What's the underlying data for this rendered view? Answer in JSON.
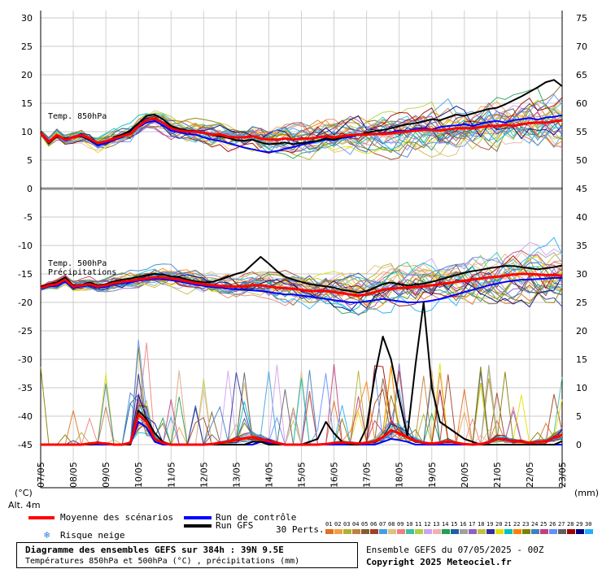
{
  "chart_data": {
    "type": "line",
    "title": "Diagramme des ensembles GEFS sur 384h : 39N 9.5E",
    "subtitle": "Températures 850hPa et 500hPa (°C) , précipitations (mm)",
    "x_tick_labels": [
      "07/05",
      "08/05",
      "09/05",
      "10/05",
      "11/05",
      "12/05",
      "13/05",
      "14/05",
      "15/05",
      "16/05",
      "17/05",
      "18/05",
      "19/05",
      "20/05",
      "21/05",
      "22/05",
      "23/05"
    ],
    "x_unit_label": "(°C)",
    "altitude_label": "Alt. 4m",
    "y_left": {
      "range": [
        -45,
        30
      ],
      "ticks": [
        30,
        25,
        20,
        15,
        10,
        5,
        0,
        -5,
        -10,
        -15,
        -20,
        -25,
        -30,
        -35,
        -40,
        -45
      ]
    },
    "y_right": {
      "label": "(mm)",
      "range": [
        0,
        75
      ],
      "ticks": [
        75,
        70,
        65,
        60,
        55,
        50,
        45,
        40,
        35,
        30,
        25,
        20,
        15,
        10,
        5,
        0
      ]
    },
    "panel_labels": {
      "t850": "Temp. 850hPa",
      "t500": "Temp. 500hPa",
      "precip": "Précipitations"
    },
    "series": [
      {
        "name": "Moyenne des scénarios",
        "group": "t850",
        "color": "#ff0000",
        "values": [
          9.8,
          8.2,
          9.4,
          8.6,
          9.0,
          9.4,
          8.8,
          8.0,
          8.3,
          8.8,
          9.2,
          9.6,
          11.0,
          12.0,
          12.3,
          11.6,
          10.6,
          10.2,
          10.0,
          10.0,
          9.8,
          9.5,
          9.5,
          9.1,
          9.0,
          9.0,
          9.2,
          8.8,
          8.6,
          8.6,
          8.8,
          8.6,
          8.8,
          8.8,
          9.0,
          9.2,
          9.0,
          9.2,
          9.4,
          9.5,
          9.5,
          9.6,
          9.6,
          9.7,
          9.9,
          10.0,
          10.2,
          10.3,
          10.3,
          10.2,
          10.4,
          10.6,
          10.6,
          10.6,
          10.8,
          11.0,
          11.0,
          11.2,
          11.0,
          11.3,
          11.5,
          11.6,
          11.6,
          11.8,
          12.0
        ]
      },
      {
        "name": "Run GFS",
        "group": "t850",
        "color": "#000000",
        "values": [
          10.0,
          8.0,
          9.2,
          8.8,
          9.0,
          9.2,
          8.6,
          7.9,
          8.2,
          9.0,
          9.5,
          10.2,
          11.5,
          12.8,
          13.0,
          12.2,
          11.0,
          10.5,
          10.2,
          10.1,
          9.7,
          9.4,
          9.2,
          8.9,
          8.5,
          8.4,
          8.6,
          8.1,
          7.8,
          7.9,
          8.1,
          7.8,
          8.0,
          8.2,
          8.4,
          8.8,
          8.6,
          9.0,
          9.3,
          9.5,
          9.8,
          10.1,
          10.3,
          10.6,
          11.0,
          11.3,
          11.5,
          11.8,
          12.2,
          12.0,
          12.5,
          13.0,
          12.8,
          13.2,
          13.6,
          14.0,
          14.2,
          14.8,
          15.5,
          16.2,
          17.0,
          17.8,
          18.7,
          19.1,
          18.0
        ]
      },
      {
        "name": "Run de contrôle",
        "group": "t850",
        "color": "#0000ff",
        "values": [
          9.9,
          8.4,
          9.3,
          8.7,
          9.1,
          9.2,
          8.5,
          7.6,
          8.0,
          8.6,
          9.0,
          9.8,
          10.8,
          11.6,
          11.9,
          11.1,
          10.2,
          9.9,
          9.6,
          9.5,
          9.0,
          8.6,
          8.4,
          8.0,
          7.6,
          7.2,
          6.9,
          6.6,
          6.4,
          6.6,
          7.0,
          7.3,
          7.7,
          8.0,
          8.3,
          8.6,
          8.5,
          8.9,
          9.1,
          9.4,
          9.6,
          9.5,
          9.7,
          9.9,
          10.2,
          10.1,
          10.5,
          10.6,
          10.4,
          10.8,
          11.0,
          11.1,
          11.3,
          11.0,
          11.4,
          11.7,
          11.9,
          11.6,
          12.0,
          12.2,
          12.4,
          12.1,
          12.5,
          12.6,
          12.9
        ]
      },
      {
        "name": "Moyenne des scénarios",
        "group": "t500",
        "color": "#ff0000",
        "values": [
          -17.5,
          -17.0,
          -16.8,
          -16.0,
          -17.2,
          -17.0,
          -16.8,
          -17.2,
          -17.0,
          -16.6,
          -16.4,
          -16.2,
          -16.0,
          -15.8,
          -15.6,
          -15.6,
          -15.8,
          -16.0,
          -16.3,
          -16.6,
          -16.8,
          -17.0,
          -17.1,
          -17.2,
          -17.2,
          -17.2,
          -17.0,
          -17.0,
          -17.2,
          -17.4,
          -17.5,
          -17.6,
          -17.8,
          -18.0,
          -18.0,
          -18.0,
          -18.2,
          -18.4,
          -18.6,
          -18.8,
          -18.6,
          -18.2,
          -17.8,
          -17.6,
          -17.5,
          -17.4,
          -17.3,
          -17.2,
          -17.0,
          -16.8,
          -16.6,
          -16.4,
          -16.2,
          -16.0,
          -15.8,
          -15.6,
          -15.5,
          -15.3,
          -15.1,
          -15.0,
          -15.0,
          -15.1,
          -15.2,
          -15.2,
          -15.3
        ]
      },
      {
        "name": "Run GFS",
        "group": "t500",
        "color": "#000000",
        "values": [
          -17.3,
          -16.8,
          -16.5,
          -15.6,
          -17.0,
          -16.9,
          -16.5,
          -17.0,
          -16.8,
          -16.3,
          -16.0,
          -15.8,
          -15.5,
          -15.2,
          -15.0,
          -15.1,
          -15.4,
          -15.6,
          -16.0,
          -16.3,
          -16.5,
          -16.4,
          -16.0,
          -15.5,
          -15.0,
          -14.6,
          -13.3,
          -12.0,
          -13.2,
          -14.5,
          -15.5,
          -16.0,
          -16.4,
          -16.8,
          -17.0,
          -17.2,
          -17.4,
          -17.8,
          -18.0,
          -18.3,
          -18.0,
          -17.4,
          -16.8,
          -16.5,
          -16.8,
          -17.0,
          -16.9,
          -16.7,
          -16.4,
          -16.0,
          -15.6,
          -15.2,
          -14.8,
          -14.5,
          -14.3,
          -14.0,
          -13.8,
          -13.6,
          -13.6,
          -13.8,
          -14.0,
          -14.2,
          -14.0,
          -13.8,
          -13.5
        ]
      },
      {
        "name": "Run de contrôle",
        "group": "t500",
        "color": "#0000ff",
        "values": [
          -17.6,
          -17.2,
          -17.0,
          -16.4,
          -17.4,
          -17.2,
          -17.0,
          -17.4,
          -17.3,
          -16.8,
          -16.6,
          -16.5,
          -16.2,
          -16.0,
          -15.9,
          -15.9,
          -16.1,
          -16.3,
          -16.6,
          -16.9,
          -17.1,
          -17.3,
          -17.4,
          -17.6,
          -17.7,
          -17.8,
          -17.9,
          -18.0,
          -18.2,
          -18.4,
          -18.6,
          -18.6,
          -18.8,
          -19.0,
          -19.2,
          -19.4,
          -19.6,
          -19.8,
          -20.0,
          -20.0,
          -19.8,
          -19.6,
          -19.4,
          -19.6,
          -19.8,
          -20.0,
          -20.0,
          -19.9,
          -19.7,
          -19.4,
          -19.0,
          -18.6,
          -18.2,
          -17.8,
          -17.4,
          -17.0,
          -16.7,
          -16.4,
          -16.2,
          -16.0,
          -16.0,
          -15.9,
          -15.8,
          -15.7,
          -15.7
        ]
      },
      {
        "name": "Moyenne des scénarios",
        "group": "precip",
        "color": "#ff0000",
        "values": [
          0,
          0,
          0,
          0,
          0,
          0,
          0.2,
          0.3,
          0.2,
          0,
          0,
          0.3,
          5.3,
          4.0,
          1.0,
          0.3,
          0,
          0,
          0,
          0,
          0,
          0.1,
          0.3,
          0.5,
          0.8,
          1.1,
          1.3,
          1.0,
          0.6,
          0.3,
          0,
          0,
          0,
          0,
          0,
          0.1,
          0.3,
          0.4,
          0.3,
          0.2,
          0.3,
          0.6,
          1.3,
          2.5,
          2.0,
          1.3,
          0.7,
          0.3,
          0.2,
          0.3,
          0.6,
          0.3,
          0.1,
          0,
          0.1,
          0.4,
          1.0,
          0.9,
          0.6,
          0.5,
          0.3,
          0.5,
          0.6,
          1.2,
          1.7
        ]
      },
      {
        "name": "Run GFS",
        "group": "precip",
        "color": "#000000",
        "values": [
          0,
          0,
          0,
          0,
          0,
          0,
          0,
          0.2,
          0.2,
          0,
          0,
          0,
          6.0,
          4.5,
          2.0,
          0.5,
          0,
          0,
          0,
          0,
          0,
          0,
          0,
          0,
          0,
          0,
          0.5,
          0.5,
          0,
          0,
          0,
          0,
          0,
          0.5,
          1.0,
          4.0,
          2.0,
          0.5,
          0,
          0,
          3.0,
          12.0,
          19.0,
          15.0,
          8.0,
          1.5,
          14.0,
          25.0,
          10.0,
          4.0,
          3.0,
          2.0,
          1.0,
          0.5,
          0,
          0,
          0,
          0,
          0,
          0,
          0,
          0,
          0,
          0,
          0.6
        ]
      },
      {
        "name": "Run de contrôle",
        "group": "precip",
        "color": "#0000ff",
        "values": [
          0,
          0,
          0,
          0,
          0,
          0,
          0,
          0,
          0,
          0,
          0,
          0,
          4.0,
          3.0,
          0.5,
          0,
          0,
          0,
          0,
          0,
          0,
          0,
          0,
          0,
          0,
          0,
          0,
          0.5,
          0.3,
          0,
          0,
          0,
          0,
          0,
          0,
          0,
          0,
          0,
          0,
          0,
          0,
          0,
          0.5,
          1.0,
          0.8,
          0.5,
          0,
          0,
          0,
          0,
          0,
          0,
          0,
          0,
          0,
          0,
          0,
          0,
          0,
          0,
          0,
          0,
          0,
          0,
          0
        ]
      }
    ]
  },
  "legend": {
    "mean": "Moyenne des scénarios",
    "control": "Run de contrôle",
    "gfs": "Run GFS",
    "snow": "Risque neige",
    "perts": "30 Perts.",
    "mean_color": "#ff0000",
    "control_color": "#0000ff",
    "gfs_color": "#000000",
    "snow_color": "#2f7fe0"
  },
  "perturbations": {
    "labels": [
      "01",
      "02",
      "03",
      "04",
      "05",
      "06",
      "07",
      "08",
      "09",
      "10",
      "11",
      "12",
      "13",
      "14",
      "15",
      "16",
      "17",
      "18",
      "19",
      "20",
      "21",
      "22",
      "23",
      "24",
      "25",
      "26",
      "27",
      "28",
      "29",
      "30"
    ],
    "colors": [
      "#e07020",
      "#f0a040",
      "#b0b030",
      "#c08040",
      "#806030",
      "#a04020",
      "#40a0e0",
      "#e0c080",
      "#f08080",
      "#40c0a0",
      "#b0d040",
      "#d0a0f0",
      "#f0b0b0",
      "#20a050",
      "#2060a0",
      "#a0a0a0",
      "#9060c0",
      "#c0c040",
      "#3030a0",
      "#e0e000",
      "#00c0c0",
      "#ff8000",
      "#808000",
      "#4080c0",
      "#c04080",
      "#6090ff",
      "#606060",
      "#a00000",
      "#000080",
      "#20b0ff"
    ]
  },
  "footer": {
    "title": "Diagramme des ensembles GEFS sur 384h : 39N 9.5E",
    "subtitle": "Températures 850hPa et 500hPa (°C) , précipitations (mm)",
    "run": "Ensemble GEFS du 07/05/2025 - 00Z",
    "copyright": "Copyright 2025 Meteociel.fr"
  }
}
